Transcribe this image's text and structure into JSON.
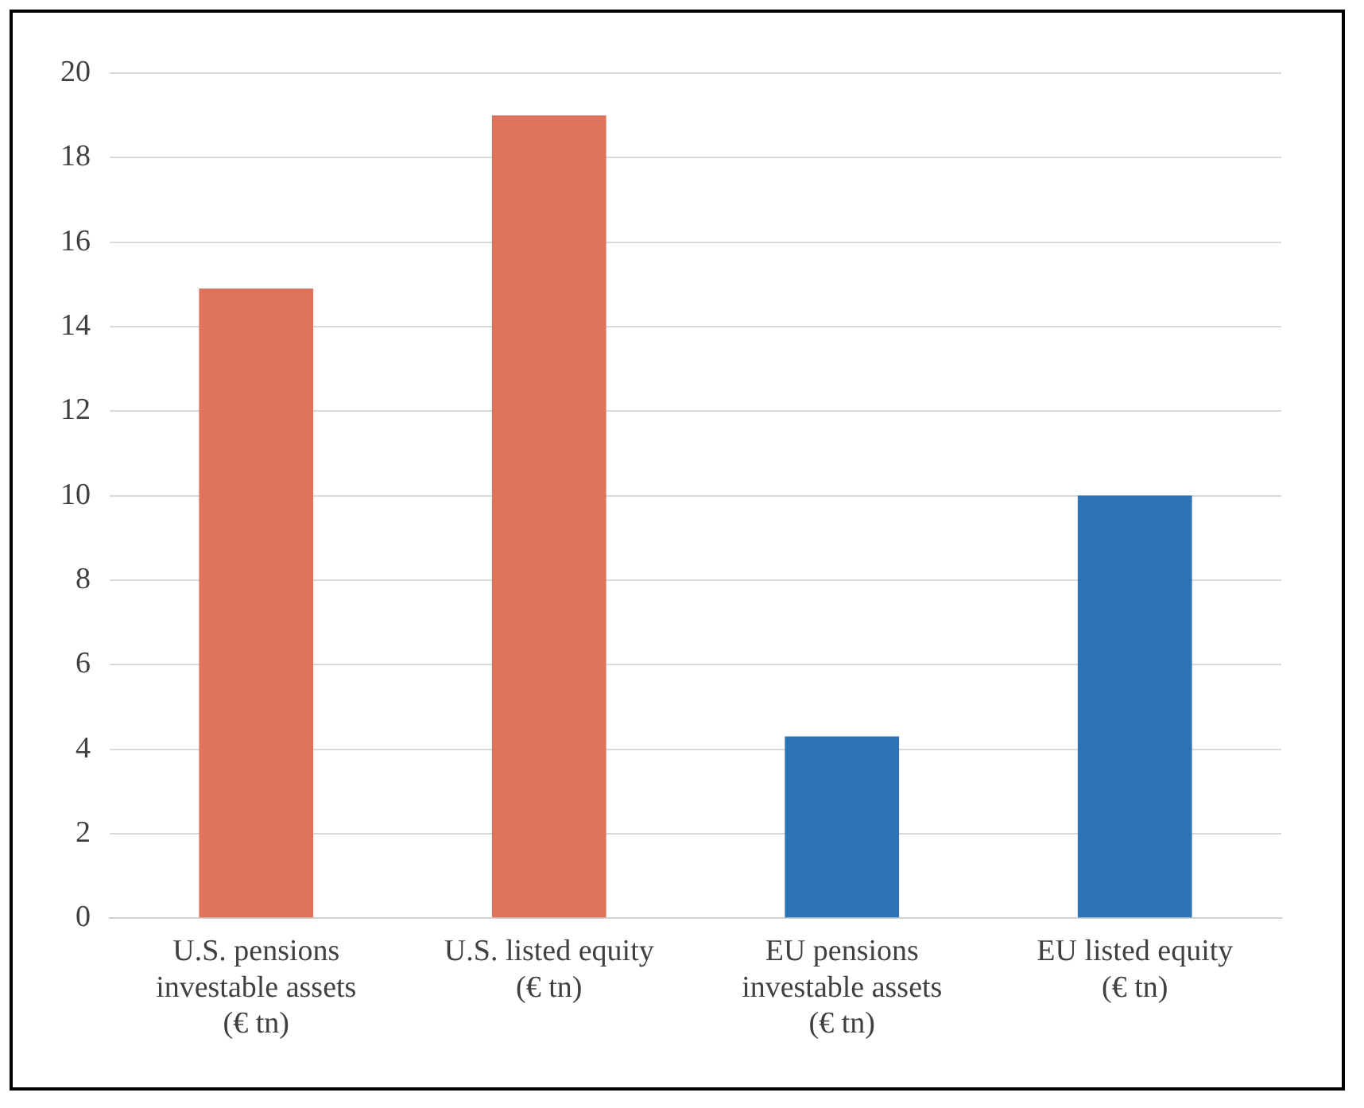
{
  "chart_data": {
    "type": "bar",
    "categories": [
      "U.S. pensions investable assets (€ tn)",
      "U.S. listed equity (€ tn)",
      "EU pensions investable assets (€ tn)",
      "EU listed equity (€ tn)"
    ],
    "values": [
      14.9,
      19,
      4.3,
      10
    ],
    "colors": [
      "#df725a",
      "#df725a",
      "#2e74b5",
      "#2e74b5"
    ],
    "ylim": [
      0,
      20
    ],
    "yticks": [
      0,
      2,
      4,
      6,
      8,
      10,
      12,
      14,
      16,
      18,
      20
    ],
    "grid": "y"
  }
}
